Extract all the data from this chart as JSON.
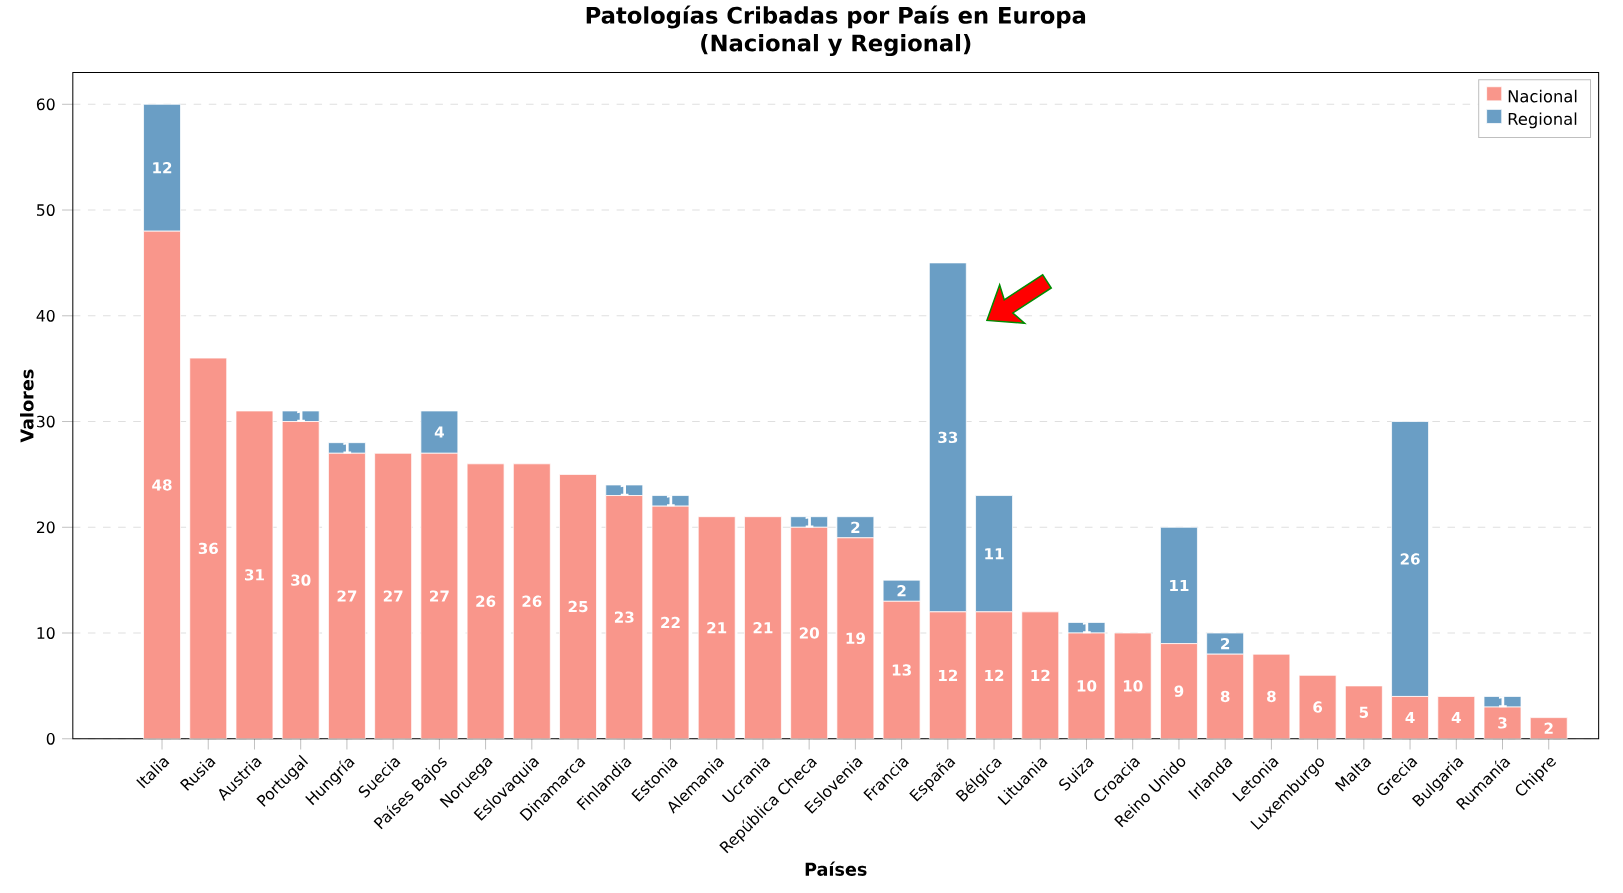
{
  "chart_data": {
    "type": "bar",
    "title": "Patologías Cribadas por País en Europa\n(Nacional y Regional)",
    "xlabel": "Países",
    "ylabel": "Valores",
    "categories": [
      "Italia",
      "Rusia",
      "Austria",
      "Portugal",
      "Hungría",
      "Suecia",
      "Países Bajos",
      "Noruega",
      "Eslovaquia",
      "Dinamarca",
      "Finlandia",
      "Estonia",
      "Alemania",
      "Ucrania",
      "República Checa",
      "Eslovenia",
      "Francia",
      "España",
      "Bélgica",
      "Lituania",
      "Suiza",
      "Croacia",
      "Reino Unido",
      "Irlanda",
      "Letonia",
      "Luxemburgo",
      "Malta",
      "Grecia",
      "Bulgaria",
      "Rumanía",
      "Chipre"
    ],
    "stacked": true,
    "series": [
      {
        "name": "Nacional",
        "color": "#f9968b",
        "values": [
          48,
          36,
          31,
          30,
          27,
          27,
          27,
          26,
          26,
          25,
          23,
          22,
          21,
          21,
          20,
          19,
          13,
          12,
          12,
          12,
          10,
          10,
          9,
          8,
          8,
          6,
          5,
          4,
          4,
          3,
          2
        ],
        "value_labels": [
          "48",
          "36",
          "31",
          "30",
          "27",
          "27",
          "27",
          "26",
          "26",
          "25",
          "23",
          "22",
          "21",
          "21",
          "20",
          "19",
          "13",
          "12",
          "12",
          "12",
          "10",
          "10",
          "9",
          "8",
          "8",
          "6",
          "5",
          "4",
          "4",
          "3",
          "2"
        ]
      },
      {
        "name": "Regional",
        "color": "#6a9ec5",
        "values": [
          12,
          0,
          0,
          1,
          1,
          0,
          4,
          0,
          0,
          0,
          1,
          1,
          0,
          0,
          1,
          2,
          2,
          33,
          11,
          0,
          1,
          0,
          11,
          2,
          0,
          0,
          0,
          26,
          0,
          1,
          0
        ],
        "value_labels": [
          "12",
          null,
          null,
          "1",
          "1",
          null,
          "4",
          null,
          null,
          null,
          "1",
          "1",
          null,
          null,
          "1",
          "2",
          "2",
          "33",
          "11",
          null,
          "1",
          null,
          "11",
          "2",
          null,
          null,
          null,
          "26",
          null,
          "1",
          null
        ]
      }
    ],
    "ylim": [
      0,
      63
    ],
    "yticks": [
      0,
      10,
      20,
      30,
      40,
      50,
      60
    ],
    "grid": "y",
    "legend": "top right"
  }
}
